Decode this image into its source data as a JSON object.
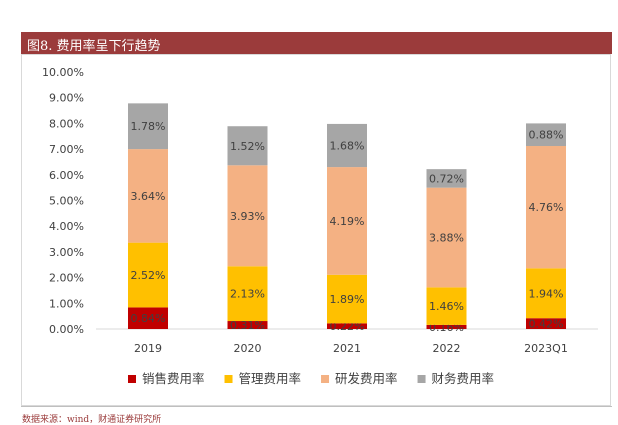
{
  "figure_title": "图8. 费用率呈下行趋势",
  "source_note": "数据来源：wind，财通证券研究所",
  "colors": {
    "title_bar": "#9b3b3b",
    "sales": "#c00000",
    "management": "#ffc000",
    "rnd": "#f4b183",
    "finance": "#a6a6a6"
  },
  "chart_data": {
    "type": "bar",
    "stacked": true,
    "categories": [
      "2019",
      "2020",
      "2021",
      "2022",
      "2023Q1"
    ],
    "series": [
      {
        "name": "销售费用率",
        "values": [
          0.84,
          0.31,
          0.22,
          0.16,
          0.42
        ],
        "labels": [
          "0.84%",
          "0.31%",
          "0.22%",
          "0.16%",
          "0.42%"
        ],
        "color": "#c00000"
      },
      {
        "name": "管理费用率",
        "values": [
          2.52,
          2.13,
          1.89,
          1.46,
          1.94
        ],
        "labels": [
          "2.52%",
          "2.13%",
          "1.89%",
          "1.46%",
          "1.94%"
        ],
        "color": "#ffc000"
      },
      {
        "name": "研发费用率",
        "values": [
          3.64,
          3.93,
          4.19,
          3.88,
          4.76
        ],
        "labels": [
          "3.64%",
          "3.93%",
          "4.19%",
          "3.88%",
          "4.76%"
        ],
        "color": "#f4b183"
      },
      {
        "name": "财务费用率",
        "values": [
          1.78,
          1.52,
          1.68,
          0.72,
          0.88
        ],
        "labels": [
          "1.78%",
          "1.52%",
          "1.68%",
          "0.72%",
          "0.88%"
        ],
        "color": "#a6a6a6"
      }
    ],
    "y_ticks": [
      "0.00%",
      "1.00%",
      "2.00%",
      "3.00%",
      "4.00%",
      "5.00%",
      "6.00%",
      "7.00%",
      "8.00%",
      "9.00%",
      "10.00%"
    ],
    "ylim": [
      0,
      10
    ],
    "legend_position": "bottom",
    "grid": false
  }
}
